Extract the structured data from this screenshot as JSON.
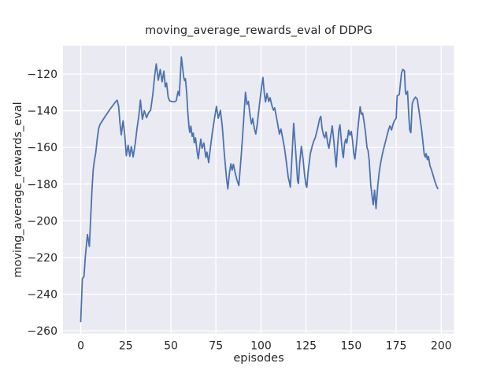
{
  "title": "moving_average_rewards_eval of DDPG",
  "chart_data": {
    "type": "line",
    "title": "moving_average_rewards_eval of DDPG",
    "xlabel": "episodes",
    "ylabel": "moving_average_rewards_eval",
    "x_ticks": [
      0,
      25,
      50,
      75,
      100,
      125,
      150,
      175,
      200
    ],
    "y_ticks": [
      -260,
      -240,
      -220,
      -200,
      -180,
      -160,
      -140,
      -120
    ],
    "xlim": [
      -9.84,
      207.06
    ],
    "ylim": [
      -261.44,
      -104.55
    ],
    "grid": true,
    "legend_position": "none",
    "style": "seaborn-darkgrid",
    "plot_bg_color": "#eaeaf2",
    "grid_color": "#ffffff",
    "line_color": "#4c72b0",
    "text_color": "#262626",
    "series_name": "moving_average_rewards_eval",
    "points": [
      [
        0,
        -255
      ],
      [
        0.9,
        -231.5
      ],
      [
        1.8,
        -230.5
      ],
      [
        2.6,
        -219
      ],
      [
        3.7,
        -207.5
      ],
      [
        4.8,
        -214
      ],
      [
        5.6,
        -197
      ],
      [
        6.3,
        -182.5
      ],
      [
        6.9,
        -172.5
      ],
      [
        7.5,
        -167.6
      ],
      [
        8.3,
        -163.2
      ],
      [
        9.2,
        -155
      ],
      [
        10,
        -149.5
      ],
      [
        10.8,
        -147.3
      ],
      [
        12,
        -145.5
      ],
      [
        13.5,
        -143.2
      ],
      [
        15,
        -141
      ],
      [
        16.5,
        -138.8
      ],
      [
        18,
        -136.9
      ],
      [
        19.2,
        -135.3
      ],
      [
        20.2,
        -134.3
      ],
      [
        21,
        -137.5
      ],
      [
        21.8,
        -147
      ],
      [
        22.5,
        -153.2
      ],
      [
        23.5,
        -145.5
      ],
      [
        24.4,
        -153
      ],
      [
        25.3,
        -164.5
      ],
      [
        26.3,
        -158.8
      ],
      [
        27.2,
        -164.8
      ],
      [
        28.1,
        -159.5
      ],
      [
        29.1,
        -165.2
      ],
      [
        30.2,
        -158
      ],
      [
        31.2,
        -150
      ],
      [
        32.2,
        -143
      ],
      [
        33.1,
        -134.2
      ],
      [
        34.2,
        -144.6
      ],
      [
        35.3,
        -140
      ],
      [
        36.5,
        -143.8
      ],
      [
        37.7,
        -141
      ],
      [
        38.8,
        -139.7
      ],
      [
        40,
        -131
      ],
      [
        41,
        -121
      ],
      [
        41.9,
        -114.5
      ],
      [
        43,
        -123.4
      ],
      [
        44.1,
        -117.6
      ],
      [
        45.1,
        -124.2
      ],
      [
        46.1,
        -118.4
      ],
      [
        46.9,
        -127
      ],
      [
        47.6,
        -124.9
      ],
      [
        48.5,
        -132.5
      ],
      [
        49.3,
        -134.6
      ],
      [
        50.5,
        -135
      ],
      [
        51.8,
        -135.2
      ],
      [
        53,
        -134.6
      ],
      [
        54,
        -129.5
      ],
      [
        54.7,
        -131.8
      ],
      [
        55.8,
        -110.7
      ],
      [
        56.5,
        -116.5
      ],
      [
        57.1,
        -121.5
      ],
      [
        57.6,
        -123.6
      ],
      [
        58.1,
        -122.6
      ],
      [
        58.8,
        -130.6
      ],
      [
        59.4,
        -141
      ],
      [
        60.1,
        -149.3
      ],
      [
        60.5,
        -151.8
      ],
      [
        61.1,
        -148.4
      ],
      [
        61.8,
        -154
      ],
      [
        62.4,
        -152.2
      ],
      [
        63,
        -157.5
      ],
      [
        63.7,
        -154.8
      ],
      [
        64.5,
        -162
      ],
      [
        65.2,
        -166.2
      ],
      [
        65.9,
        -160.5
      ],
      [
        66.6,
        -155.5
      ],
      [
        67.3,
        -160.5
      ],
      [
        68.3,
        -157.6
      ],
      [
        69.4,
        -165.4
      ],
      [
        70,
        -162.6
      ],
      [
        71,
        -168.3
      ],
      [
        71.7,
        -161.9
      ],
      [
        72.9,
        -152.6
      ],
      [
        74.2,
        -144.1
      ],
      [
        75.3,
        -137.7
      ],
      [
        76.3,
        -144.1
      ],
      [
        77.5,
        -139.8
      ],
      [
        78.5,
        -148.2
      ],
      [
        79.6,
        -162.6
      ],
      [
        80.8,
        -176.2
      ],
      [
        81.6,
        -182.6
      ],
      [
        82.6,
        -173.2
      ],
      [
        83.3,
        -169
      ],
      [
        84,
        -172.4
      ],
      [
        84.7,
        -169.2
      ],
      [
        85.6,
        -173.6
      ],
      [
        86.6,
        -177.6
      ],
      [
        87.7,
        -180.8
      ],
      [
        88.4,
        -172.2
      ],
      [
        89.1,
        -163.3
      ],
      [
        89.9,
        -152.2
      ],
      [
        90.7,
        -140.5
      ],
      [
        91.4,
        -130
      ],
      [
        92.2,
        -136.6
      ],
      [
        93,
        -134.9
      ],
      [
        94,
        -143
      ],
      [
        94.7,
        -147.2
      ],
      [
        95.4,
        -144.2
      ],
      [
        96.4,
        -150.2
      ],
      [
        97.1,
        -152.7
      ],
      [
        97.9,
        -147.6
      ],
      [
        98.7,
        -140.2
      ],
      [
        99.5,
        -133.6
      ],
      [
        100.4,
        -126.6
      ],
      [
        101.1,
        -121.9
      ],
      [
        101.9,
        -131.2
      ],
      [
        102.5,
        -135.2
      ],
      [
        103.3,
        -130.6
      ],
      [
        104.3,
        -135
      ],
      [
        105,
        -132.9
      ],
      [
        106.1,
        -137.4
      ],
      [
        106.9,
        -139.7
      ],
      [
        107.6,
        -138.4
      ],
      [
        108.5,
        -143.2
      ],
      [
        109.4,
        -148
      ],
      [
        110.2,
        -152.7
      ],
      [
        111.1,
        -150
      ],
      [
        112.1,
        -155.3
      ],
      [
        113.1,
        -160.7
      ],
      [
        114.1,
        -168.2
      ],
      [
        115.1,
        -176.2
      ],
      [
        115.9,
        -179.6
      ],
      [
        116.3,
        -181.7
      ],
      [
        117.3,
        -163.2
      ],
      [
        118.1,
        -146.9
      ],
      [
        118.8,
        -156.2
      ],
      [
        119.6,
        -167.3
      ],
      [
        120.3,
        -178.3
      ],
      [
        120.8,
        -179.7
      ],
      [
        121.5,
        -168.2
      ],
      [
        122.4,
        -159.4
      ],
      [
        123.3,
        -166.2
      ],
      [
        124.1,
        -174.2
      ],
      [
        124.9,
        -180.2
      ],
      [
        125.4,
        -181.8
      ],
      [
        126.1,
        -173.6
      ],
      [
        126.8,
        -167.9
      ],
      [
        127.4,
        -163.2
      ],
      [
        128.5,
        -158.9
      ],
      [
        129.3,
        -156.5
      ],
      [
        130.2,
        -154.4
      ],
      [
        131.1,
        -150.8
      ],
      [
        131.8,
        -147.9
      ],
      [
        132.5,
        -144.5
      ],
      [
        133.2,
        -143.1
      ],
      [
        133.9,
        -149.6
      ],
      [
        134.7,
        -153.5
      ],
      [
        135.4,
        -154.8
      ],
      [
        136.1,
        -151.6
      ],
      [
        137,
        -157.7
      ],
      [
        137.7,
        -160.5
      ],
      [
        138.5,
        -154.8
      ],
      [
        139.5,
        -148.3
      ],
      [
        140.4,
        -156.3
      ],
      [
        141.1,
        -164.2
      ],
      [
        141.7,
        -170.6
      ],
      [
        142.5,
        -159.2
      ],
      [
        143.2,
        -150.6
      ],
      [
        143.8,
        -147.7
      ],
      [
        144.5,
        -155.6
      ],
      [
        145.1,
        -162
      ],
      [
        145.7,
        -165.6
      ],
      [
        146.4,
        -157.7
      ],
      [
        147,
        -155.6
      ],
      [
        147.6,
        -157.7
      ],
      [
        148.6,
        -150.6
      ],
      [
        149.3,
        -153.4
      ],
      [
        150.1,
        -151.3
      ],
      [
        150.8,
        -156.3
      ],
      [
        151.5,
        -163.4
      ],
      [
        152.1,
        -166.3
      ],
      [
        153,
        -157.7
      ],
      [
        153.7,
        -149.8
      ],
      [
        154.4,
        -143.4
      ],
      [
        155,
        -137.8
      ],
      [
        155.7,
        -141.9
      ],
      [
        156.4,
        -141.3
      ],
      [
        157.2,
        -146.3
      ],
      [
        158,
        -152
      ],
      [
        158.8,
        -160
      ],
      [
        159.4,
        -161.8
      ],
      [
        160,
        -166.9
      ],
      [
        160.9,
        -180.4
      ],
      [
        161.7,
        -187.5
      ],
      [
        162.3,
        -191.2
      ],
      [
        163,
        -183.3
      ],
      [
        163.8,
        -193.3
      ],
      [
        164.8,
        -180.4
      ],
      [
        165.6,
        -173.3
      ],
      [
        166.4,
        -168.4
      ],
      [
        167.4,
        -163.4
      ],
      [
        168.5,
        -159
      ],
      [
        169.6,
        -154.7
      ],
      [
        170.7,
        -150.5
      ],
      [
        171.5,
        -148.3
      ],
      [
        172.4,
        -150.5
      ],
      [
        173.2,
        -147.5
      ],
      [
        174,
        -145.5
      ],
      [
        175,
        -144.1
      ],
      [
        175.5,
        -131.9
      ],
      [
        176.7,
        -131.2
      ],
      [
        177.9,
        -119.7
      ],
      [
        178.6,
        -117.5
      ],
      [
        179.6,
        -118.3
      ],
      [
        180.1,
        -129.7
      ],
      [
        180.5,
        -131.1
      ],
      [
        181.3,
        -129.4
      ],
      [
        182.1,
        -144.8
      ],
      [
        182.5,
        -150.5
      ],
      [
        183.1,
        -152
      ],
      [
        183.9,
        -136.2
      ],
      [
        184.7,
        -134.1
      ],
      [
        185.7,
        -132.6
      ],
      [
        186.7,
        -133.7
      ],
      [
        187.5,
        -139.1
      ],
      [
        188.3,
        -144.8
      ],
      [
        189.1,
        -150.5
      ],
      [
        189.7,
        -156.1
      ],
      [
        190.5,
        -163.4
      ],
      [
        191.1,
        -165.3
      ],
      [
        191.6,
        -163.4
      ],
      [
        192.3,
        -166.7
      ],
      [
        192.9,
        -164.9
      ],
      [
        193.7,
        -169.9
      ],
      [
        194.4,
        -171.7
      ],
      [
        195.3,
        -174.6
      ],
      [
        196.3,
        -178.1
      ],
      [
        197.3,
        -180.9
      ],
      [
        198,
        -182.4
      ]
    ]
  }
}
